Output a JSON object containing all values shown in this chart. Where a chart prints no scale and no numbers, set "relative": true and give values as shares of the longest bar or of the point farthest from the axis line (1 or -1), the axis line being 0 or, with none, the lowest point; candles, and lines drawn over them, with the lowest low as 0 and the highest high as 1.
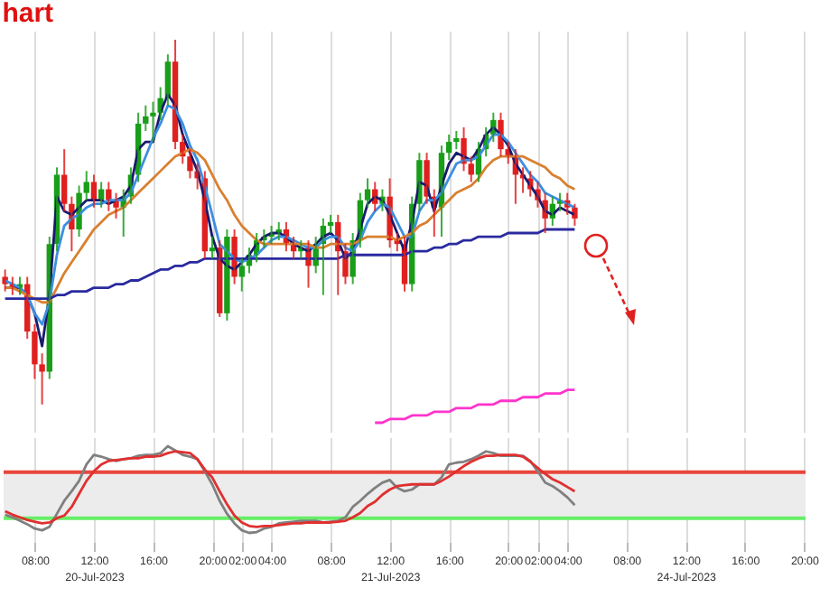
{
  "chart_data": [
    {
      "type": "candlestick",
      "title": "hart",
      "relative": true,
      "grid": "x",
      "tick_labels": false,
      "categories": [
        null,
        null,
        null,
        null,
        null,
        null,
        null,
        null,
        null,
        null,
        null,
        null,
        null,
        null,
        null,
        null,
        null,
        null,
        null,
        null,
        null,
        null,
        null,
        null,
        null,
        null,
        null,
        null,
        null,
        null,
        null,
        null,
        null,
        null,
        null,
        null,
        null,
        null,
        null,
        null,
        null,
        null,
        null,
        null,
        null,
        null,
        null,
        null,
        null,
        null,
        null,
        null,
        null,
        null,
        null,
        null,
        null,
        null,
        null,
        null,
        null,
        null,
        null,
        null,
        null,
        null,
        null,
        null,
        null,
        null,
        null,
        null,
        null,
        null,
        null,
        null,
        null,
        null,
        null,
        null,
        null,
        null,
        null,
        null,
        null,
        null,
        null,
        null,
        null,
        null,
        null,
        null,
        null,
        null,
        null,
        null,
        null,
        null,
        null,
        null,
        null,
        null,
        null,
        null,
        null,
        null,
        null,
        null,
        null
      ],
      "ohlc": [
        [
          0.35,
          0.37,
          0.31,
          0.33
        ],
        [
          0.33,
          0.35,
          0.3,
          0.32
        ],
        [
          0.32,
          0.35,
          0.3,
          0.33
        ],
        [
          0.33,
          0.35,
          0.18,
          0.2
        ],
        [
          0.2,
          0.22,
          0.07,
          0.11
        ],
        [
          0.11,
          0.14,
          0,
          0.09
        ],
        [
          0.09,
          0.46,
          0.07,
          0.44
        ],
        [
          0.44,
          0.65,
          0.42,
          0.63
        ],
        [
          0.63,
          0.7,
          0.53,
          0.55
        ],
        [
          0.55,
          0.57,
          0.42,
          0.48
        ],
        [
          0.48,
          0.6,
          0.46,
          0.58
        ],
        [
          0.58,
          0.64,
          0.56,
          0.61
        ],
        [
          0.61,
          0.63,
          0.54,
          0.56
        ],
        [
          0.56,
          0.61,
          0.54,
          0.59
        ],
        [
          0.59,
          0.61,
          0.53,
          0.56
        ],
        [
          0.56,
          0.58,
          0.51,
          0.54
        ],
        [
          0.54,
          0.59,
          0.46,
          0.57
        ],
        [
          0.57,
          0.65,
          0.55,
          0.63
        ],
        [
          0.63,
          0.8,
          0.61,
          0.77
        ],
        [
          0.77,
          0.82,
          0.75,
          0.79
        ],
        [
          0.79,
          0.83,
          0.72,
          0.8
        ],
        [
          0.8,
          0.87,
          0.78,
          0.84
        ],
        [
          0.84,
          0.96,
          0.82,
          0.94
        ],
        [
          0.94,
          1.0,
          0.7,
          0.72
        ],
        [
          0.72,
          0.74,
          0.66,
          0.68
        ],
        [
          0.68,
          0.7,
          0.62,
          0.64
        ],
        [
          0.64,
          0.66,
          0.59,
          0.62
        ],
        [
          0.62,
          0.64,
          0.4,
          0.42
        ],
        [
          0.42,
          0.46,
          0.4,
          0.43
        ],
        [
          0.43,
          0.45,
          0.24,
          0.25
        ],
        [
          0.25,
          0.48,
          0.23,
          0.46
        ],
        [
          0.46,
          0.48,
          0.33,
          0.35
        ],
        [
          0.35,
          0.4,
          0.31,
          0.38
        ],
        [
          0.38,
          0.43,
          0.36,
          0.41
        ],
        [
          0.41,
          0.47,
          0.39,
          0.45
        ],
        [
          0.45,
          0.48,
          0.43,
          0.46
        ],
        [
          0.46,
          0.49,
          0.44,
          0.47
        ],
        [
          0.47,
          0.5,
          0.45,
          0.48
        ],
        [
          0.48,
          0.5,
          0.42,
          0.44
        ],
        [
          0.44,
          0.46,
          0.4,
          0.42
        ],
        [
          0.42,
          0.45,
          0.4,
          0.43
        ],
        [
          0.43,
          0.45,
          0.32,
          0.38
        ],
        [
          0.38,
          0.46,
          0.36,
          0.44
        ],
        [
          0.44,
          0.51,
          0.3,
          0.49
        ],
        [
          0.49,
          0.52,
          0.47,
          0.5
        ],
        [
          0.5,
          0.52,
          0.3,
          0.42
        ],
        [
          0.42,
          0.44,
          0.33,
          0.35
        ],
        [
          0.35,
          0.47,
          0.33,
          0.45
        ],
        [
          0.45,
          0.58,
          0.43,
          0.56
        ],
        [
          0.56,
          0.62,
          0.54,
          0.59
        ],
        [
          0.59,
          0.61,
          0.53,
          0.55
        ],
        [
          0.55,
          0.59,
          0.53,
          0.57
        ],
        [
          0.57,
          0.62,
          0.43,
          0.45
        ],
        [
          0.45,
          0.47,
          0.42,
          0.44
        ],
        [
          0.44,
          0.46,
          0.31,
          0.33
        ],
        [
          0.33,
          0.57,
          0.31,
          0.55
        ],
        [
          0.55,
          0.69,
          0.53,
          0.67
        ],
        [
          0.67,
          0.69,
          0.55,
          0.57
        ],
        [
          0.57,
          0.59,
          0.46,
          0.54
        ],
        [
          0.54,
          0.71,
          0.46,
          0.69
        ],
        [
          0.69,
          0.74,
          0.67,
          0.72
        ],
        [
          0.72,
          0.75,
          0.7,
          0.73
        ],
        [
          0.73,
          0.76,
          0.64,
          0.66
        ],
        [
          0.66,
          0.68,
          0.61,
          0.63
        ],
        [
          0.63,
          0.72,
          0.61,
          0.7
        ],
        [
          0.7,
          0.76,
          0.68,
          0.74
        ],
        [
          0.74,
          0.8,
          0.72,
          0.78
        ],
        [
          0.78,
          0.8,
          0.68,
          0.7
        ],
        [
          0.7,
          0.72,
          0.66,
          0.68
        ],
        [
          0.68,
          0.7,
          0.55,
          0.63
        ],
        [
          0.63,
          0.65,
          0.58,
          0.62
        ],
        [
          0.62,
          0.64,
          0.57,
          0.59
        ],
        [
          0.59,
          0.61,
          0.54,
          0.56
        ],
        [
          0.56,
          0.58,
          0.47,
          0.51
        ],
        [
          0.51,
          0.57,
          0.49,
          0.55
        ],
        [
          0.55,
          0.58,
          0.53,
          0.56
        ],
        [
          0.56,
          0.58,
          0.52,
          0.54
        ],
        [
          0.54,
          0.55,
          0.49,
          0.51
        ],
        null,
        null,
        null,
        null,
        null,
        null,
        null,
        null,
        null,
        null,
        null,
        null,
        null,
        null,
        null,
        null,
        null,
        null,
        null,
        null,
        null,
        null,
        null,
        null,
        null,
        null,
        null,
        null,
        null,
        null,
        null
      ],
      "colors": [
        "#e02020",
        "#e02020",
        "#1a9e1a",
        "#e02020",
        "#e02020",
        "#e02020",
        "#1a9e1a",
        "#1a9e1a",
        "#e02020",
        "#e02020",
        "#1a9e1a",
        "#1a9e1a",
        "#e02020",
        "#1a9e1a",
        "#e02020",
        "#e02020",
        "#1a9e1a",
        "#1a9e1a",
        "#1a9e1a",
        "#1a9e1a",
        "#1a9e1a",
        "#1a9e1a",
        "#1a9e1a",
        "#e02020",
        "#e02020",
        "#e02020",
        "#e02020",
        "#e02020",
        "#1a9e1a",
        "#e02020",
        "#1a9e1a",
        "#e02020",
        "#1a9e1a",
        "#1a9e1a",
        "#1a9e1a",
        "#1a9e1a",
        "#1a9e1a",
        "#1a9e1a",
        "#e02020",
        "#e02020",
        "#1a9e1a",
        "#e02020",
        "#1a9e1a",
        "#1a9e1a",
        "#1a9e1a",
        "#e02020",
        "#e02020",
        "#1a9e1a",
        "#1a9e1a",
        "#1a9e1a",
        "#e02020",
        "#1a9e1a",
        "#e02020",
        "#e02020",
        "#e02020",
        "#1a9e1a",
        "#1a9e1a",
        "#e02020",
        "#e02020",
        "#1a9e1a",
        "#1a9e1a",
        "#1a9e1a",
        "#e02020",
        "#e02020",
        "#1a9e1a",
        "#1a9e1a",
        "#1a9e1a",
        "#e02020",
        "#e02020",
        "#e02020",
        "#e02020",
        "#e02020",
        "#e02020",
        "#e02020",
        "#1a9e1a",
        "#1a9e1a",
        "#e02020",
        "#e02020",
        null,
        null,
        null,
        null,
        null,
        null,
        null,
        null,
        null,
        null,
        null,
        null,
        null,
        null,
        null,
        null,
        null,
        null,
        null,
        null,
        null,
        null,
        null,
        null,
        null,
        null,
        null,
        null,
        null,
        null,
        null
      ],
      "series": [
        {
          "type": "line",
          "color": "#1a1a6e",
          "values": [
            0.32,
            0.32,
            0.32,
            0.3,
            0.25,
            0.16,
            0.3,
            0.57,
            0.53,
            0.52,
            0.54,
            0.56,
            0.56,
            0.56,
            0.55,
            0.56,
            0.57,
            0.6,
            0.7,
            0.72,
            0.72,
            0.8,
            0.85,
            0.82,
            0.74,
            0.69,
            0.64,
            0.56,
            0.46,
            0.4,
            0.38,
            0.37,
            0.39,
            0.41,
            0.44,
            0.46,
            0.47,
            0.47,
            0.46,
            0.44,
            0.43,
            0.42,
            0.44,
            0.46,
            0.47,
            0.45,
            0.4,
            0.42,
            0.48,
            0.55,
            0.57,
            0.56,
            0.52,
            0.47,
            0.42,
            0.5,
            0.61,
            0.6,
            0.53,
            0.6,
            0.66,
            0.69,
            0.68,
            0.67,
            0.7,
            0.74,
            0.76,
            0.74,
            0.71,
            0.66,
            0.63,
            0.6,
            0.57,
            0.53,
            0.52,
            0.54,
            0.53,
            0.52,
            null,
            null,
            null,
            null,
            null,
            null,
            null,
            null,
            null,
            null,
            null,
            null,
            null,
            null,
            null,
            null,
            null,
            null,
            null,
            null,
            null,
            null,
            null,
            null,
            null,
            null,
            null,
            null,
            null,
            null,
            null
          ]
        },
        {
          "type": "line",
          "color": "#3d8fe0",
          "values": [
            0.34,
            0.33,
            0.32,
            0.3,
            0.25,
            0.22,
            0.28,
            0.41,
            0.49,
            0.51,
            0.52,
            0.54,
            0.55,
            0.55,
            0.56,
            0.56,
            0.56,
            0.58,
            0.63,
            0.68,
            0.73,
            0.77,
            0.82,
            0.81,
            0.77,
            0.71,
            0.67,
            0.6,
            0.52,
            0.44,
            0.42,
            0.4,
            0.39,
            0.4,
            0.41,
            0.43,
            0.45,
            0.46,
            0.46,
            0.45,
            0.44,
            0.43,
            0.43,
            0.45,
            0.46,
            0.46,
            0.43,
            0.42,
            0.45,
            0.5,
            0.53,
            0.55,
            0.54,
            0.5,
            0.46,
            0.46,
            0.53,
            0.56,
            0.56,
            0.58,
            0.62,
            0.66,
            0.67,
            0.67,
            0.68,
            0.71,
            0.74,
            0.74,
            0.72,
            0.69,
            0.66,
            0.63,
            0.61,
            0.58,
            0.57,
            0.56,
            0.55,
            0.54,
            null,
            null,
            null,
            null,
            null,
            null,
            null,
            null,
            null,
            null,
            null,
            null,
            null,
            null,
            null,
            null,
            null,
            null,
            null,
            null,
            null,
            null,
            null,
            null,
            null,
            null,
            null,
            null,
            null,
            null,
            null
          ]
        },
        {
          "type": "line",
          "color": "#d98030",
          "values": [
            0.32,
            0.32,
            0.31,
            0.3,
            0.29,
            0.28,
            0.28,
            0.32,
            0.36,
            0.39,
            0.42,
            0.45,
            0.48,
            0.5,
            0.52,
            0.53,
            0.54,
            0.56,
            0.58,
            0.6,
            0.62,
            0.64,
            0.66,
            0.68,
            0.69,
            0.7,
            0.69,
            0.67,
            0.63,
            0.59,
            0.56,
            0.52,
            0.49,
            0.47,
            0.45,
            0.44,
            0.44,
            0.44,
            0.44,
            0.44,
            0.44,
            0.44,
            0.43,
            0.43,
            0.44,
            0.44,
            0.44,
            0.44,
            0.45,
            0.46,
            0.46,
            0.46,
            0.46,
            0.45,
            0.46,
            0.47,
            0.49,
            0.5,
            0.52,
            0.54,
            0.56,
            0.58,
            0.59,
            0.6,
            0.62,
            0.65,
            0.67,
            0.68,
            0.68,
            0.68,
            0.68,
            0.67,
            0.66,
            0.65,
            0.63,
            0.62,
            0.6,
            0.59,
            null,
            null,
            null,
            null,
            null,
            null,
            null,
            null,
            null,
            null,
            null,
            null,
            null,
            null,
            null,
            null,
            null,
            null,
            null,
            null,
            null,
            null,
            null,
            null,
            null,
            null,
            null,
            null,
            null,
            null,
            null
          ]
        },
        {
          "type": "line",
          "color": "#2a2aa0",
          "values": [
            0.29,
            0.29,
            0.29,
            0.29,
            0.29,
            0.29,
            0.29,
            0.3,
            0.3,
            0.31,
            0.31,
            0.31,
            0.32,
            0.32,
            0.32,
            0.33,
            0.33,
            0.34,
            0.34,
            0.35,
            0.36,
            0.37,
            0.37,
            0.38,
            0.38,
            0.39,
            0.39,
            0.4,
            0.4,
            0.4,
            0.4,
            0.4,
            0.4,
            0.4,
            0.4,
            0.4,
            0.4,
            0.4,
            0.4,
            0.4,
            0.4,
            0.4,
            0.4,
            0.4,
            0.4,
            0.4,
            0.41,
            0.41,
            0.41,
            0.41,
            0.41,
            0.41,
            0.41,
            0.41,
            0.41,
            0.42,
            0.42,
            0.42,
            0.43,
            0.43,
            0.44,
            0.44,
            0.45,
            0.45,
            0.46,
            0.46,
            0.46,
            0.46,
            0.47,
            0.47,
            0.47,
            0.47,
            0.47,
            0.48,
            0.48,
            0.48,
            0.48,
            0.48,
            null,
            null,
            null,
            null,
            null,
            null,
            null,
            null,
            null,
            null,
            null,
            null,
            null,
            null,
            null,
            null,
            null,
            null,
            null,
            null,
            null,
            null,
            null,
            null,
            null,
            null,
            null,
            null,
            null,
            null,
            null
          ]
        },
        {
          "type": "line",
          "color": "#ff33cc",
          "values": [
            null,
            null,
            null,
            null,
            null,
            null,
            null,
            null,
            null,
            null,
            null,
            null,
            null,
            null,
            null,
            null,
            null,
            null,
            null,
            null,
            null,
            null,
            null,
            null,
            null,
            null,
            null,
            null,
            null,
            null,
            null,
            null,
            null,
            null,
            null,
            null,
            null,
            null,
            null,
            null,
            null,
            null,
            null,
            null,
            null,
            null,
            null,
            null,
            null,
            null,
            -0.05,
            -0.05,
            -0.04,
            -0.04,
            -0.04,
            -0.03,
            -0.03,
            -0.03,
            -0.02,
            -0.02,
            -0.02,
            -0.01,
            -0.01,
            -0.01,
            0,
            0,
            0,
            0.01,
            0.01,
            0.01,
            0.02,
            0.02,
            0.02,
            0.03,
            0.03,
            0.03,
            0.04,
            0.04,
            null,
            null,
            null,
            null,
            null,
            null,
            null,
            null,
            null,
            null,
            null,
            null,
            null,
            null,
            null,
            null,
            null,
            null,
            null,
            null,
            null,
            null,
            null,
            null,
            null,
            null,
            null,
            null,
            null,
            null,
            null
          ]
        }
      ]
    },
    {
      "type": "line",
      "relative": true,
      "grid": "x",
      "tick_labels": "x",
      "categories": [
        null,
        null,
        null,
        null,
        "08:00",
        null,
        null,
        null,
        null,
        null,
        null,
        null,
        "12:00\n20-Jul-2023",
        null,
        null,
        null,
        null,
        null,
        null,
        null,
        "16:00",
        null,
        null,
        null,
        null,
        null,
        null,
        null,
        "20:00",
        null,
        null,
        null,
        "02:00",
        null,
        null,
        null,
        "04:00",
        null,
        null,
        null,
        null,
        null,
        null,
        null,
        "08:00",
        null,
        null,
        null,
        null,
        null,
        null,
        null,
        "12:00\n21-Jul-2023",
        null,
        null,
        null,
        null,
        null,
        null,
        null,
        "16:00",
        null,
        null,
        null,
        null,
        null,
        null,
        null,
        "20:00",
        null,
        null,
        null,
        "02:00",
        null,
        null,
        null,
        "04:00",
        null,
        null,
        null,
        null,
        null,
        null,
        null,
        "08:00",
        null,
        null,
        null,
        null,
        null,
        null,
        null,
        "12:00\n24-Jul-2023",
        null,
        null,
        null,
        null,
        null,
        null,
        null,
        "16:00",
        null,
        null,
        null,
        null,
        null,
        null,
        null,
        "20:00"
      ],
      "bands": [
        {
          "axis": "y",
          "from": 0.17,
          "to": 0.7,
          "color": "#ececec"
        }
      ],
      "ref_lines": [
        {
          "axis": "y",
          "value": 0.7,
          "color": "#e8453c"
        },
        {
          "axis": "y",
          "value": 0.17,
          "color": "#66ee66"
        }
      ],
      "series": [
        {
          "color": "#808080",
          "values": [
            0.21,
            0.18,
            0.14,
            0.1,
            0.05,
            0.03,
            0.07,
            0.22,
            0.37,
            0.48,
            0.6,
            0.79,
            0.9,
            0.88,
            0.85,
            0.83,
            0.85,
            0.86,
            0.89,
            0.9,
            0.9,
            0.92,
            1.0,
            0.95,
            0.9,
            0.88,
            0.85,
            0.71,
            0.56,
            0.37,
            0.22,
            0.11,
            0.03,
            0,
            0.01,
            0.05,
            0.07,
            0.11,
            0.12,
            0.13,
            0.14,
            0.14,
            0.14,
            0.12,
            0.13,
            0.14,
            0.18,
            0.3,
            0.37,
            0.45,
            0.52,
            0.58,
            0.61,
            0.52,
            0.48,
            0.5,
            0.56,
            0.56,
            0.56,
            0.64,
            0.79,
            0.81,
            0.82,
            0.85,
            0.89,
            0.94,
            0.92,
            0.89,
            0.89,
            0.89,
            0.89,
            0.83,
            0.71,
            0.58,
            0.54,
            0.48,
            0.41,
            0.32,
            null,
            null,
            null,
            null,
            null,
            null,
            null,
            null,
            null,
            null,
            null,
            null,
            null,
            null,
            null,
            null,
            null,
            null,
            null,
            null,
            null,
            null,
            null,
            null,
            null,
            null,
            null,
            null,
            null,
            null,
            null
          ]
        },
        {
          "color": "#e03030",
          "values": [
            0.25,
            0.21,
            0.18,
            0.15,
            0.13,
            0.11,
            0.12,
            0.17,
            0.2,
            0.3,
            0.45,
            0.6,
            0.71,
            0.79,
            0.83,
            0.84,
            0.85,
            0.86,
            0.86,
            0.88,
            0.88,
            0.89,
            0.92,
            0.94,
            0.93,
            0.92,
            0.85,
            0.73,
            0.64,
            0.48,
            0.33,
            0.2,
            0.12,
            0.08,
            0.07,
            0.08,
            0.08,
            0.09,
            0.1,
            0.11,
            0.11,
            0.12,
            0.12,
            0.12,
            0.12,
            0.13,
            0.14,
            0.18,
            0.23,
            0.31,
            0.36,
            0.44,
            0.5,
            0.54,
            0.55,
            0.56,
            0.56,
            0.56,
            0.56,
            0.6,
            0.65,
            0.71,
            0.77,
            0.82,
            0.86,
            0.89,
            0.89,
            0.9,
            0.9,
            0.9,
            0.88,
            0.82,
            0.75,
            0.68,
            0.62,
            0.58,
            0.53,
            0.48,
            null,
            null,
            null,
            null,
            null,
            null,
            null,
            null,
            null,
            null,
            null,
            null,
            null,
            null,
            null,
            null,
            null,
            null,
            null,
            null,
            null,
            null,
            null,
            null,
            null,
            null,
            null,
            null,
            null,
            null,
            null
          ]
        }
      ]
    }
  ]
}
